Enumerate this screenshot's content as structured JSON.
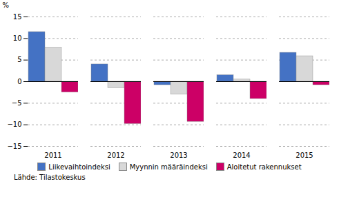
{
  "chart_data": {
    "type": "bar",
    "categories": [
      "2011",
      "2012",
      "2013",
      "2014",
      "2015"
    ],
    "series": [
      {
        "name": "Liikevaihtoindeksi",
        "color": "#4472c4",
        "values": [
          11.5,
          4.0,
          -0.8,
          1.5,
          6.7
        ]
      },
      {
        "name": "Myynnin määräindeksi",
        "color": "#d8d8d8",
        "values": [
          7.9,
          -1.5,
          -3.0,
          0.5,
          5.9
        ]
      },
      {
        "name": "Aloitetut rakennukset",
        "color": "#cc0066",
        "values": [
          -2.5,
          -9.8,
          -9.3,
          -4.0,
          -0.8
        ]
      }
    ],
    "ylabel": "%",
    "ylim": [
      -15,
      15
    ],
    "yticks": [
      -15,
      -10,
      -5,
      0,
      5,
      10,
      15
    ],
    "grid": true,
    "legend": "bottom",
    "annotations": [
      "Lähde: Tilastokeskus"
    ]
  }
}
